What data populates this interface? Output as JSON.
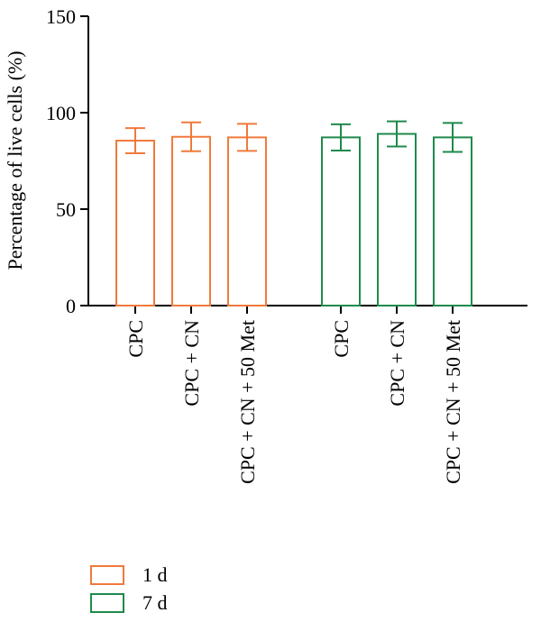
{
  "chart_data": {
    "type": "bar",
    "title": "",
    "xlabel": "",
    "ylabel": "Percentage of live cells (%)",
    "ylim": [
      0,
      150
    ],
    "yticks": [
      0,
      50,
      100,
      150
    ],
    "grid": false,
    "legend_position": "bottom-left",
    "groups": [
      {
        "series": "1 d",
        "categories": [
          "CPC",
          "CPC + CN",
          "CPC + CN + 50 Met"
        ],
        "values": [
          85.5,
          87.5,
          87.2
        ],
        "errors": [
          6.5,
          7.5,
          7.0
        ]
      },
      {
        "series": "7 d",
        "categories": [
          "CPC",
          "CPC + CN",
          "CPC + CN + 50 Met"
        ],
        "values": [
          87.2,
          89.0,
          87.2
        ],
        "errors": [
          6.8,
          6.5,
          7.5
        ]
      }
    ],
    "series": [
      {
        "name": "1 d",
        "color": "#f07a3c"
      },
      {
        "name": "7 d",
        "color": "#1f8a4c"
      }
    ]
  }
}
